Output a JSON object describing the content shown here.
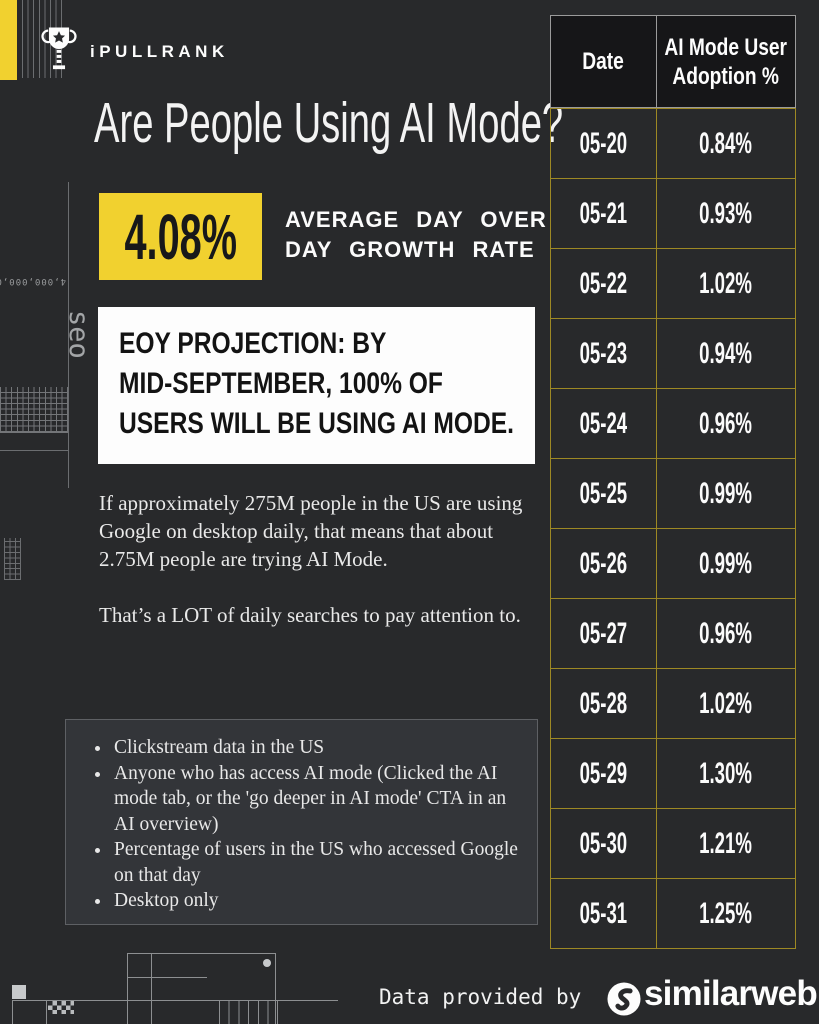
{
  "page": {
    "bg": "#28292b",
    "accent_yellow": "#F1D12F",
    "table_border_yellow": "#9d8824"
  },
  "logo": {
    "brand": "iPULLRANK"
  },
  "header": {
    "title": "Are People Using AI Mode?"
  },
  "stat": {
    "value": "4.08%",
    "label": "AVERAGE DAY OVER\nDAY GROWTH RATE"
  },
  "projection": {
    "text": "EOY PROJECTION: BY\nMID-SEPTEMBER, 100% OF\nUSERS WILL BE USING AI MODE."
  },
  "body": {
    "paragraph1": "If approximately 275M people in the US are using Google on desktop daily, that means that about 2.75M people are trying AI Mode.",
    "paragraph2": "That’s a LOT of daily searches to pay attention to."
  },
  "methodology": {
    "items": [
      "Clickstream data in the US",
      "Anyone who has access AI mode (Clicked the AI mode tab, or the 'go deeper in AI mode'  CTA in an AI overview)",
      "Percentage of users in the US who accessed Google on that day",
      "Desktop only"
    ]
  },
  "table": {
    "headers": [
      "Date",
      "AI Mode User\nAdoption %"
    ],
    "rows": [
      [
        "05-20",
        "0.84%"
      ],
      [
        "05-21",
        "0.93%"
      ],
      [
        "05-22",
        "1.02%"
      ],
      [
        "05-23",
        "0.94%"
      ],
      [
        "05-24",
        "0.96%"
      ],
      [
        "05-25",
        "0.99%"
      ],
      [
        "05-26",
        "0.99%"
      ],
      [
        "05-27",
        "0.96%"
      ],
      [
        "05-28",
        "1.02%"
      ],
      [
        "05-29",
        "1.30%"
      ],
      [
        "05-30",
        "1.21%"
      ],
      [
        "05-31",
        "1.25%"
      ]
    ]
  },
  "footer": {
    "credit": "Data provided by",
    "provider": "similarweb"
  },
  "decor": {
    "axis_number": "4,000,000,0",
    "axis_word": "seo"
  },
  "chart_data": {
    "type": "table",
    "title": "Are People Using AI Mode?",
    "columns": [
      "Date",
      "AI Mode User Adoption %"
    ],
    "dates": [
      "05-20",
      "05-21",
      "05-22",
      "05-23",
      "05-24",
      "05-25",
      "05-26",
      "05-27",
      "05-28",
      "05-29",
      "05-30",
      "05-31"
    ],
    "adoption_pct": [
      0.84,
      0.93,
      1.02,
      0.94,
      0.96,
      0.99,
      0.99,
      0.96,
      1.02,
      1.3,
      1.21,
      1.25
    ],
    "avg_day_over_day_growth_rate_pct": 4.08,
    "projection": "By mid-September, 100% of users will be using AI Mode",
    "source": "similarweb"
  }
}
